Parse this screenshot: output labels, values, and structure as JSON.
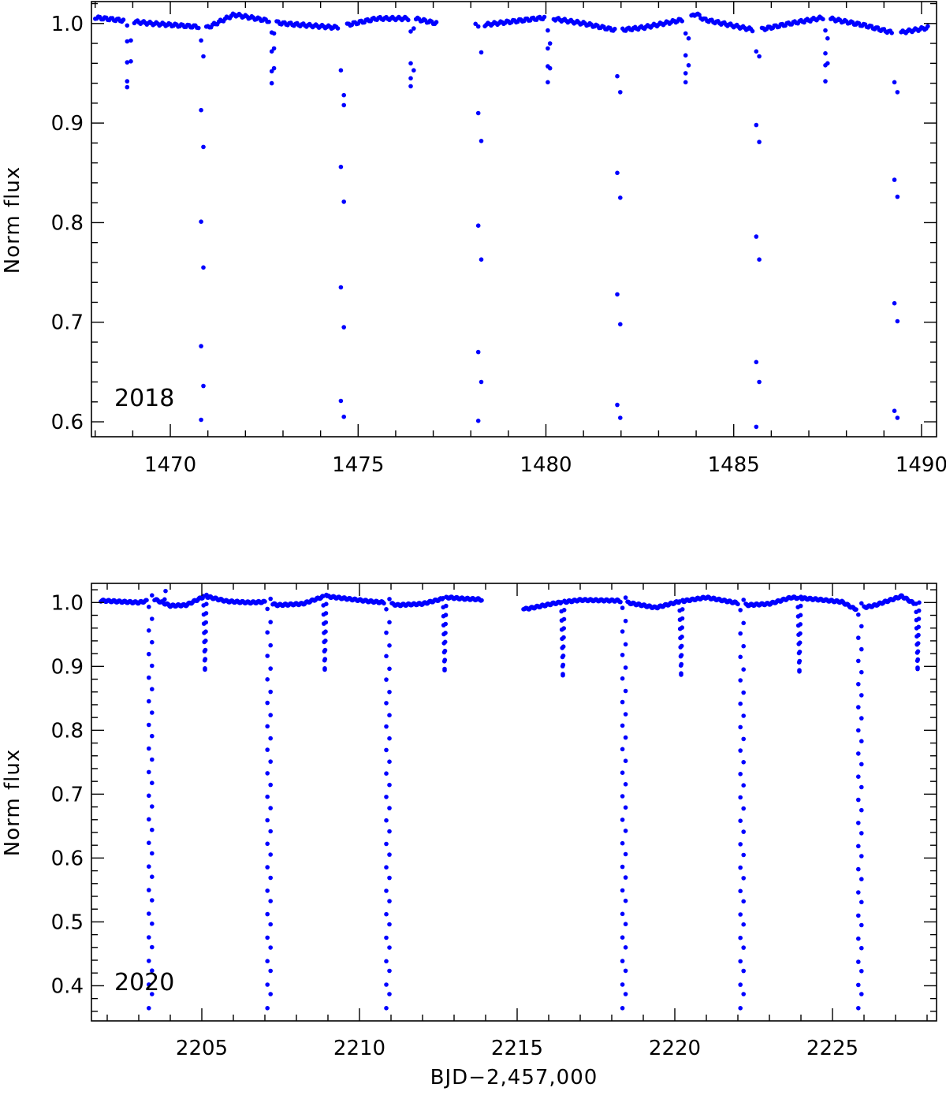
{
  "chart_data": [
    {
      "type": "scatter",
      "panel_label": "2018",
      "xlabel": "",
      "ylabel": "Norm flux",
      "xlim": [
        1467.9,
        1490.4
      ],
      "ylim": [
        0.585,
        1.022
      ],
      "x_ticks": [
        1470,
        1475,
        1480,
        1485,
        1490
      ],
      "x_tick_labels": [
        "1470",
        "1475",
        "1480",
        "1485",
        "1490"
      ],
      "y_ticks": [
        0.6,
        0.7,
        0.8,
        0.9,
        1.0
      ],
      "y_tick_labels": [
        "0.6",
        "0.7",
        "0.8",
        "0.9",
        "1.0"
      ],
      "marker_color": "#0000ff",
      "baseline": {
        "x": [
          1468.0,
          1469.5,
          1471.0,
          1471.7,
          1473.0,
          1474.4,
          1475.5,
          1476.5,
          1477.1,
          1478.2,
          1480.0,
          1481.0,
          1481.9,
          1482.6,
          1483.8,
          1484.0,
          1484.2,
          1485.6,
          1486.5,
          1487.4,
          1488.5,
          1489.3,
          1490.2
        ],
        "y": [
          1.006,
          1.0,
          0.996,
          1.009,
          1.0,
          0.996,
          1.005,
          1.005,
          1.0,
          0.998,
          1.006,
          1.0,
          0.993,
          0.996,
          1.005,
          1.01,
          1.004,
          0.993,
          1.0,
          1.006,
          0.998,
          0.99,
          0.996
        ]
      },
      "gaps": [
        [
          1477.1,
          1478.1
        ]
      ],
      "points_per_day": 24,
      "eclipse_points": [
        {
          "x": 1468.85,
          "y": [
            0.998,
            0.982,
            0.961,
            0.942,
            0.936
          ]
        },
        {
          "x": 1468.95,
          "y": [
            0.983,
            0.962
          ]
        },
        {
          "x": 1470.82,
          "y": [
            0.983,
            0.913,
            0.801,
            0.676,
            0.602
          ]
        },
        {
          "x": 1470.88,
          "y": [
            0.636,
            0.755,
            0.876,
            0.967
          ]
        },
        {
          "x": 1472.7,
          "y": [
            0.991,
            0.972,
            0.952,
            0.94
          ]
        },
        {
          "x": 1472.76,
          "y": [
            0.955,
            0.975,
            0.99
          ]
        },
        {
          "x": 1474.54,
          "y": [
            0.953,
            0.856,
            0.735,
            0.621
          ]
        },
        {
          "x": 1474.62,
          "y": [
            0.605,
            0.695,
            0.821,
            0.928,
            0.918
          ]
        },
        {
          "x": 1476.4,
          "y": [
            0.992,
            0.96,
            0.945,
            0.937
          ]
        },
        {
          "x": 1476.48,
          "y": [
            0.953,
            0.995
          ]
        },
        {
          "x": 1478.2,
          "y": [
            0.997,
            0.91,
            0.797,
            0.67,
            0.601
          ]
        },
        {
          "x": 1478.28,
          "y": [
            0.64,
            0.763,
            0.882,
            0.971
          ]
        },
        {
          "x": 1480.05,
          "y": [
            0.993,
            0.975,
            0.957,
            0.941
          ]
        },
        {
          "x": 1480.11,
          "y": [
            0.955,
            0.98
          ]
        },
        {
          "x": 1481.9,
          "y": [
            0.947,
            0.85,
            0.728,
            0.617
          ]
        },
        {
          "x": 1481.98,
          "y": [
            0.604,
            0.698,
            0.825,
            0.931
          ]
        },
        {
          "x": 1483.72,
          "y": [
            0.99,
            0.968,
            0.95,
            0.941
          ]
        },
        {
          "x": 1483.8,
          "y": [
            0.958,
            0.985
          ]
        },
        {
          "x": 1485.6,
          "y": [
            0.972,
            0.898,
            0.786,
            0.66,
            0.595
          ]
        },
        {
          "x": 1485.68,
          "y": [
            0.64,
            0.763,
            0.881,
            0.967
          ]
        },
        {
          "x": 1487.44,
          "y": [
            0.993,
            0.97,
            0.958,
            0.942
          ]
        },
        {
          "x": 1487.5,
          "y": [
            0.96,
            0.985
          ]
        },
        {
          "x": 1489.28,
          "y": [
            0.941,
            0.843,
            0.719,
            0.611
          ]
        },
        {
          "x": 1489.36,
          "y": [
            0.604,
            0.701,
            0.826,
            0.931
          ]
        }
      ]
    },
    {
      "type": "scatter",
      "panel_label": "2020",
      "xlabel": "BJD−2,457,000",
      "ylabel": "Norm flux",
      "xlim": [
        2201.5,
        2228.3
      ],
      "ylim": [
        0.345,
        1.03
      ],
      "x_ticks": [
        2205,
        2210,
        2215,
        2220,
        2225
      ],
      "x_tick_labels": [
        "2205",
        "2210",
        "2215",
        "2220",
        "2225"
      ],
      "y_ticks": [
        0.4,
        0.5,
        0.6,
        0.7,
        0.8,
        0.9,
        1.0
      ],
      "y_tick_labels": [
        "0.4",
        "0.5",
        "0.6",
        "0.7",
        "0.8",
        "0.9",
        "1.0"
      ],
      "marker_color": "#0000ff",
      "baseline": {
        "x": [
          2201.8,
          2203.0,
          2203.5,
          2204.0,
          2204.5,
          2205.1,
          2205.8,
          2206.5,
          2207.0,
          2207.4,
          2208.2,
          2208.9,
          2209.6,
          2210.3,
          2210.8,
          2211.2,
          2212.0,
          2212.8,
          2213.3,
          2213.8,
          2215.3,
          2216.2,
          2217.0,
          2218.2,
          2218.6,
          2219.4,
          2220.1,
          2221.0,
          2221.9,
          2222.3,
          2223.0,
          2223.7,
          2224.5,
          2225.3,
          2225.7,
          2226.3,
          2227.2,
          2227.6
        ],
        "y": [
          1.003,
          1.0,
          1.005,
          0.995,
          0.996,
          1.01,
          1.002,
          1.0,
          1.001,
          0.996,
          0.998,
          1.01,
          1.006,
          1.002,
          1.0,
          0.996,
          0.998,
          1.008,
          1.006,
          1.005,
          0.99,
          0.999,
          1.004,
          1.003,
          0.999,
          0.992,
          1.001,
          1.008,
          1.0,
          0.996,
          0.998,
          1.008,
          1.005,
          1.001,
          0.99,
          0.995,
          1.01,
          0.998
        ]
      },
      "gaps": [
        [
          2213.9,
          2215.2
        ]
      ],
      "points_per_day": 40,
      "shallow_dips": [
        {
          "x": 2205.1,
          "depth": 0.895
        },
        {
          "x": 2208.9,
          "depth": 0.895
        },
        {
          "x": 2212.7,
          "depth": 0.894
        },
        {
          "x": 2216.45,
          "depth": 0.886
        },
        {
          "x": 2220.2,
          "depth": 0.887
        },
        {
          "x": 2223.95,
          "depth": 0.892
        },
        {
          "x": 2227.7,
          "depth": 0.896
        }
      ],
      "deep_columns": [
        {
          "x": 2203.32,
          "min": 0.365
        },
        {
          "x": 2203.42,
          "min": 0.37
        },
        {
          "x": 2207.08,
          "min": 0.365
        },
        {
          "x": 2207.18,
          "min": 0.37
        },
        {
          "x": 2210.85,
          "min": 0.365
        },
        {
          "x": 2210.95,
          "min": 0.37
        },
        {
          "x": 2218.34,
          "min": 0.365
        },
        {
          "x": 2218.44,
          "min": 0.37
        },
        {
          "x": 2222.08,
          "min": 0.365
        },
        {
          "x": 2222.18,
          "min": 0.37
        },
        {
          "x": 2225.82,
          "min": 0.365
        },
        {
          "x": 2225.92,
          "min": 0.37
        }
      ],
      "outliers": [
        {
          "x": 2203.85,
          "y": 1.018
        },
        {
          "x": 2203.82,
          "y": 1.005
        }
      ]
    }
  ]
}
